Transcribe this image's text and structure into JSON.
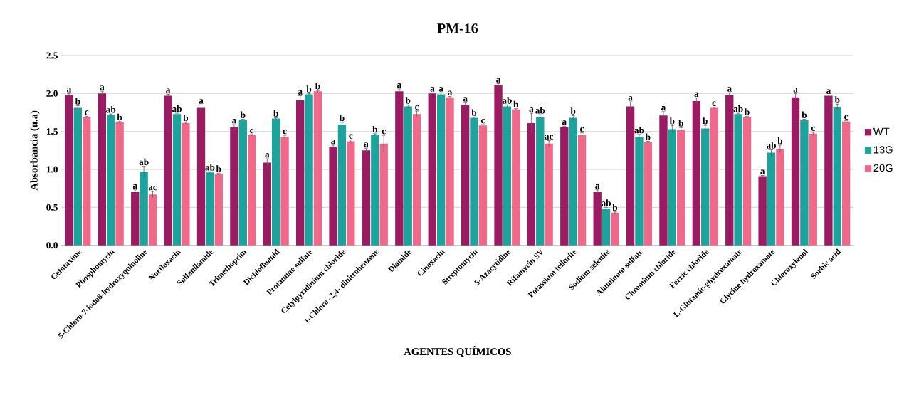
{
  "chart_data": {
    "type": "bar",
    "title": "PM-16",
    "xlabel": "AGENTES QUÍMICOS",
    "ylabel": "Absorbancia (u.a)",
    "categories": [
      "Cefotaxime",
      "Phosphomycin",
      "5-Chloro-7-iodo8-hydroxyquinoline",
      "Norfloxacin",
      "Sulfanilamide",
      "Trimethoprim",
      "Dichlofluanid",
      "Protamine sulfate",
      "Cetylpyridinium chloride",
      "1-Chloro -2,4- dinitrobenzene",
      "Diamide",
      "Cinoxacin",
      "Streptomycin",
      "5-Azacytidine",
      "Rifamycin SV",
      "Potassium tellurite",
      "Sodium selenite",
      "Aluminum sulfate",
      "Chromium chloride",
      "Ferric chloride",
      "L-Glutamic-ghydroxamate",
      "Glycine hydroxamate",
      "Chloroxylenol",
      "Sorbic acid"
    ],
    "series": [
      {
        "name": "WT",
        "color": "#9b1b62",
        "values": [
          1.98,
          2.0,
          0.7,
          1.97,
          1.81,
          1.56,
          1.09,
          1.91,
          1.3,
          1.25,
          2.03,
          2.0,
          1.85,
          2.11,
          1.61,
          1.56,
          0.7,
          1.83,
          1.71,
          1.9,
          1.98,
          0.91,
          1.95,
          1.97
        ],
        "errors": [
          0.02,
          0.03,
          0.03,
          0.02,
          0.04,
          0.03,
          0.05,
          0.06,
          0.02,
          0.03,
          0.03,
          0.01,
          0.03,
          0.02,
          0.13,
          0.01,
          0.03,
          0.06,
          0.05,
          0.04,
          0.03,
          0.01,
          0.05,
          0.01
        ],
        "value_labels": [
          "a",
          "a",
          "a",
          "a",
          "a",
          "a",
          "a",
          "a",
          "a",
          "a",
          "a",
          "a",
          "a",
          "a",
          "a",
          "a",
          "a",
          "a",
          "a",
          "a",
          "a",
          "a",
          "a",
          "a"
        ]
      },
      {
        "name": "13G",
        "color": "#1ba39c",
        "values": [
          1.81,
          1.72,
          0.97,
          1.73,
          0.96,
          1.65,
          1.67,
          1.99,
          1.59,
          1.46,
          1.83,
          1.99,
          1.68,
          1.83,
          1.69,
          1.68,
          0.48,
          1.43,
          1.53,
          1.54,
          1.73,
          1.22,
          1.65,
          1.82
        ],
        "errors": [
          0.03,
          0.01,
          0.07,
          0.01,
          0.01,
          0.01,
          0.01,
          0.01,
          0.03,
          0.01,
          0.02,
          0.02,
          0.01,
          0.02,
          0.03,
          0.03,
          0.02,
          0.03,
          0.05,
          0.04,
          0.01,
          0.04,
          0.01,
          0.04
        ],
        "value_labels": [
          "b",
          "ab",
          "ab",
          "ab",
          "ab",
          "b",
          "b",
          "b",
          "b",
          "b",
          "b",
          "a",
          "b",
          "ab",
          "ab",
          "b",
          "ab",
          "ab",
          "b",
          "b",
          "ab",
          "ab",
          "b",
          "b"
        ]
      },
      {
        "name": "20G",
        "color": "#f0698a",
        "values": [
          1.69,
          1.62,
          0.67,
          1.61,
          0.94,
          1.45,
          1.43,
          2.03,
          1.37,
          1.34,
          1.73,
          1.95,
          1.58,
          1.79,
          1.34,
          1.45,
          0.43,
          1.36,
          1.52,
          1.81,
          1.69,
          1.27,
          1.47,
          1.63
        ],
        "errors": [
          0.01,
          0.01,
          0.04,
          0.01,
          0.01,
          0.01,
          0.02,
          0.01,
          0.02,
          0.11,
          0.04,
          0.01,
          0.01,
          0.01,
          0.04,
          0.03,
          0.01,
          0.01,
          0.03,
          0.01,
          0.01,
          0.05,
          0.02,
          0.01
        ],
        "value_labels": [
          "c",
          "b",
          "ac",
          "b",
          "b",
          "c",
          "c",
          "b",
          "c",
          "c",
          "c",
          "a",
          "c",
          "b",
          "ac",
          "c",
          "b",
          "b",
          "b",
          "c",
          "b",
          "b",
          "c",
          "c"
        ]
      }
    ],
    "ylim": [
      0,
      2.5
    ],
    "yticks": [
      {
        "value": 0,
        "label": "0.0"
      },
      0.5,
      {
        "value": 1,
        "label": "1.0"
      },
      1.5,
      {
        "value": 2,
        "label": "2.0"
      },
      2.5
    ],
    "grid": "y",
    "legend": "right"
  }
}
